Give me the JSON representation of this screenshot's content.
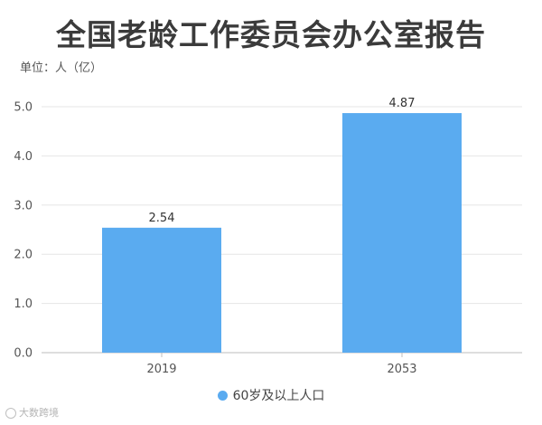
{
  "chart_data": {
    "type": "bar",
    "title": "全国老龄工作委员会办公室报告",
    "unit_label": "单位：人（亿）",
    "categories": [
      "2019",
      "2053"
    ],
    "series": [
      {
        "name": "60岁及以上人口",
        "values": [
          2.54,
          4.87
        ],
        "color": "#5aabf0"
      }
    ],
    "ylim": [
      0,
      5.0
    ],
    "yticks": [
      "0.0",
      "1.0",
      "2.0",
      "3.0",
      "4.0",
      "5.0"
    ],
    "data_labels": [
      "2.54",
      "4.87"
    ],
    "grid": true,
    "legend_position": "bottom"
  },
  "watermark": "大数跨境"
}
